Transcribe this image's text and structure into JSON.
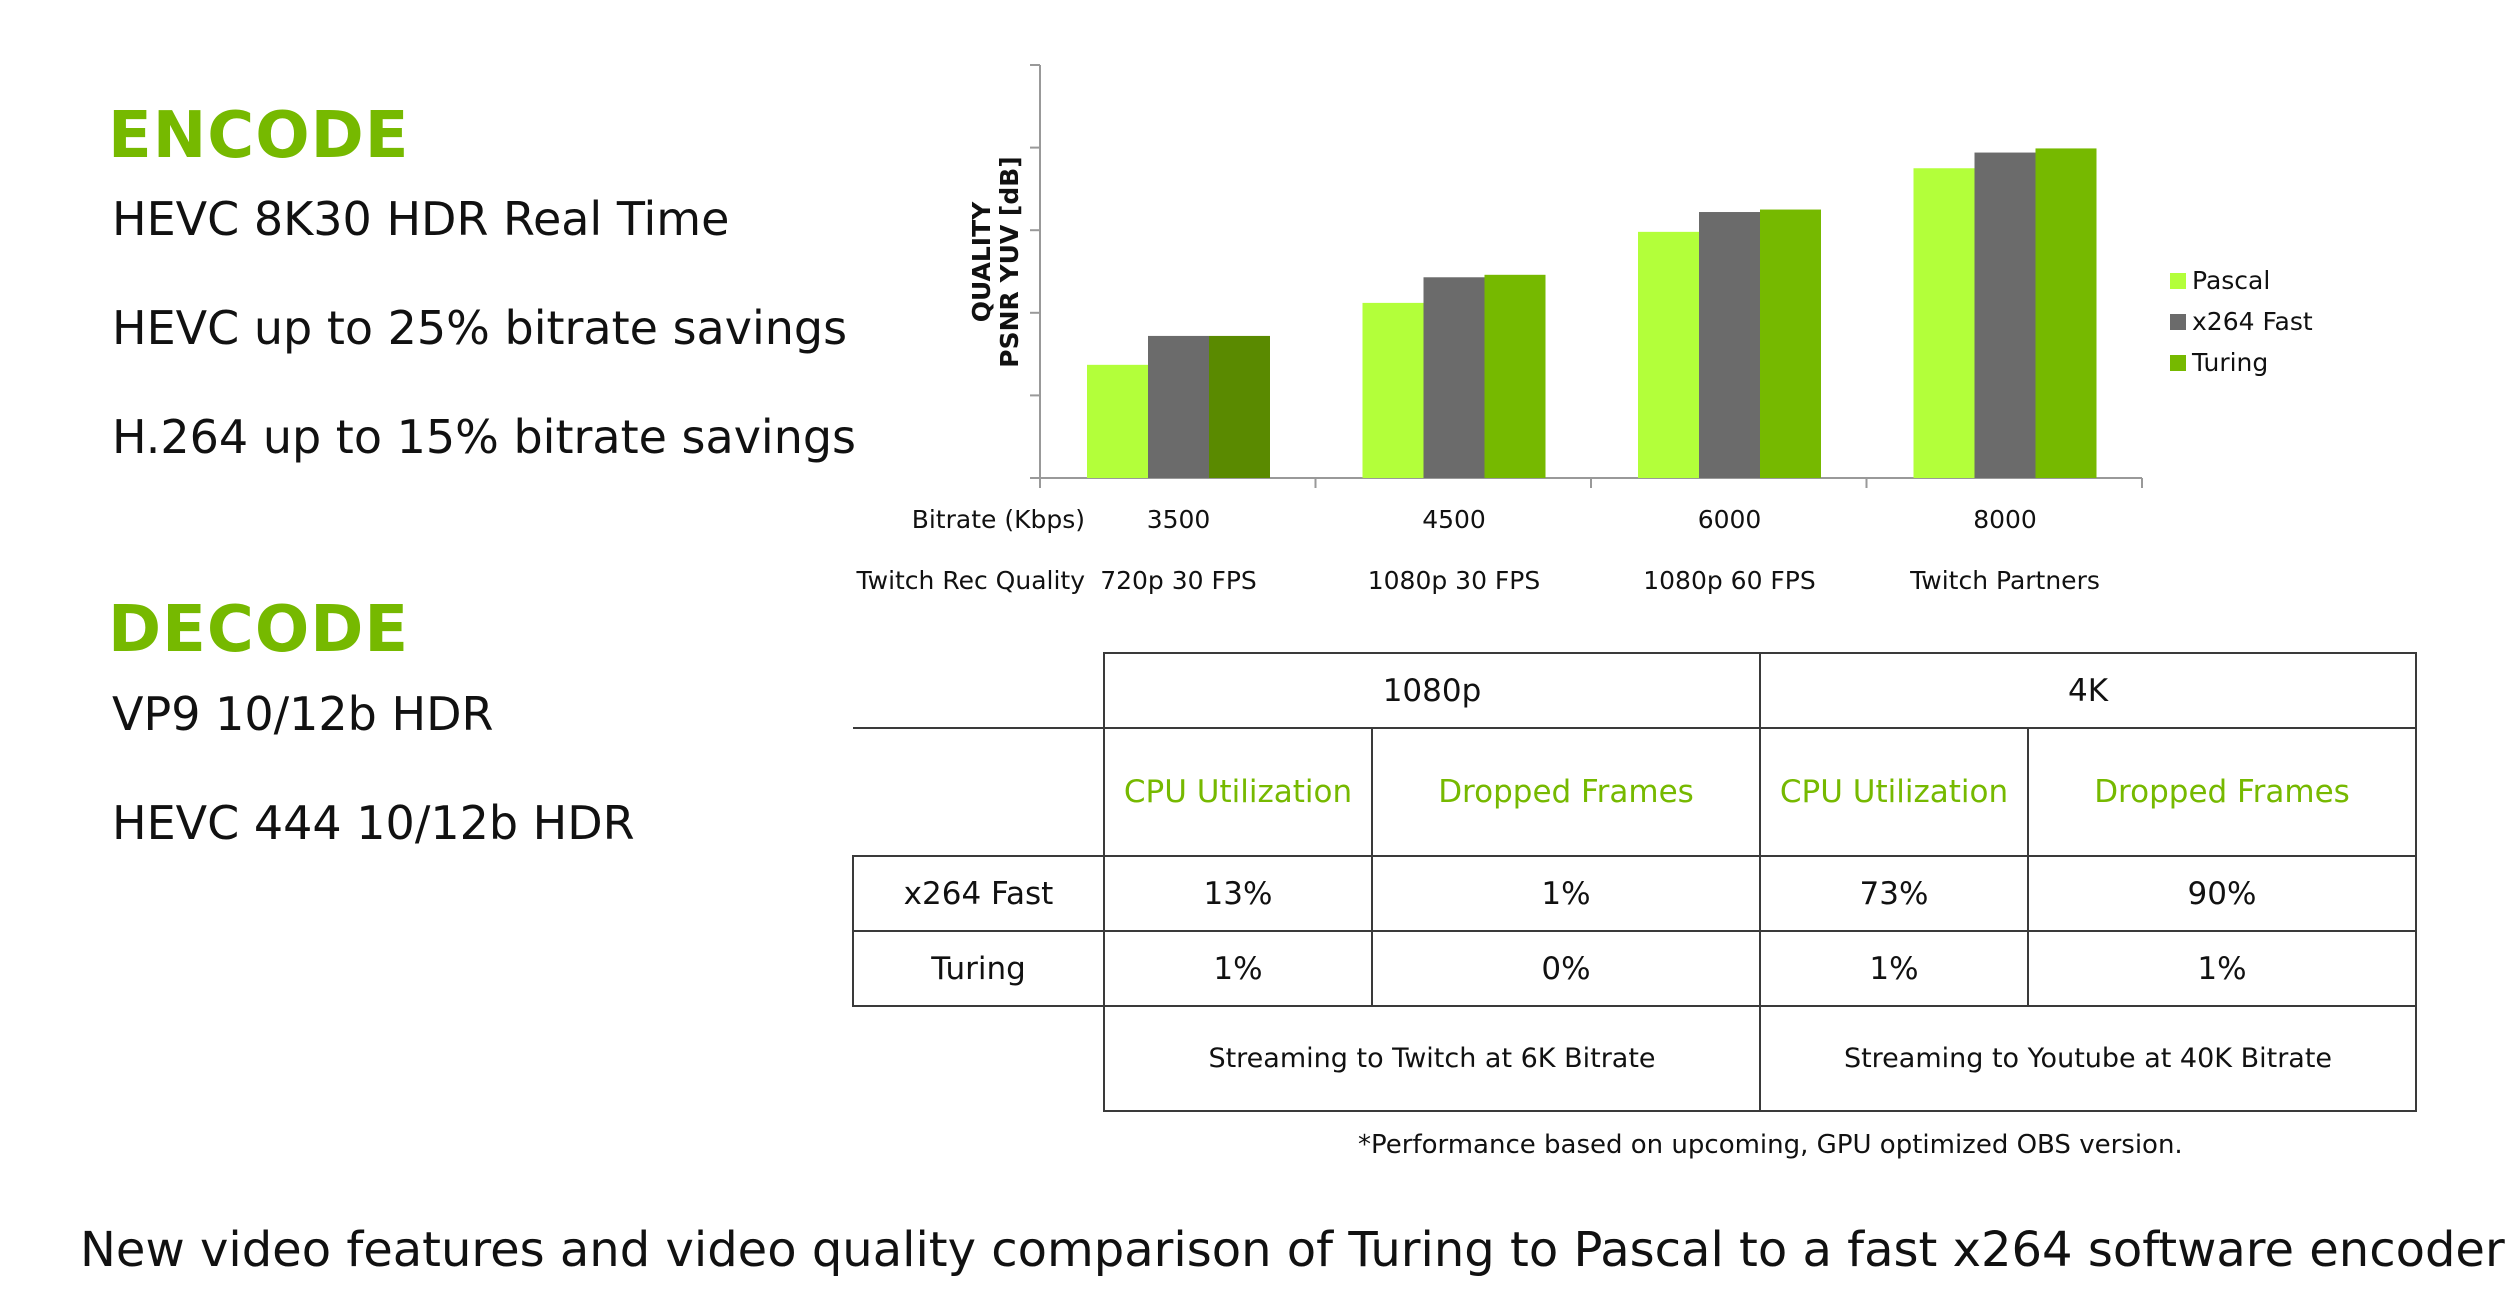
{
  "encode": {
    "heading": "ENCODE",
    "features": [
      "HEVC 8K30 HDR Real Time",
      "HEVC up to 25% bitrate savings",
      "H.264 up to 15% bitrate savings"
    ]
  },
  "decode": {
    "heading": "DECODE",
    "features": [
      "VP9 10/12b HDR",
      "HEVC 444 10/12b HDR"
    ]
  },
  "chart_data": {
    "type": "bar",
    "ylabel": [
      "QUALITY",
      "PSNR YUV [dB]"
    ],
    "ylim": [
      0,
      5
    ],
    "y_tick_labels": false,
    "grid": false,
    "legend_position": "right",
    "categories": [
      "3500",
      "4500",
      "6000",
      "8000"
    ],
    "x_row_labels": [
      "Bitrate (Kbps)",
      "Twitch Rec Quality"
    ],
    "quality_labels": [
      "720p 30 FPS",
      "1080p 30 FPS",
      "1080p 60 FPS",
      "Twitch Partners"
    ],
    "series": [
      {
        "name": "Pascal",
        "values": [
          1.37,
          2.12,
          2.98,
          3.75
        ]
      },
      {
        "name": "x264 Fast",
        "values": [
          1.72,
          2.43,
          3.22,
          3.94
        ]
      },
      {
        "name": "Turing",
        "values": [
          1.72,
          2.46,
          3.25,
          3.99
        ]
      }
    ],
    "colors": [
      "#b3ff3a",
      "#6b6b6b",
      "#76b900"
    ],
    "first_turing_color": "#5a8a00"
  },
  "table": {
    "group_headers": [
      "1080p",
      "4K"
    ],
    "sub_headers": [
      "CPU Utilization",
      "Dropped Frames",
      "CPU Utilization",
      "Dropped Frames"
    ],
    "rows": [
      {
        "label": "x264 Fast",
        "cells": [
          "13%",
          "1%",
          "73%",
          "90%"
        ]
      },
      {
        "label": "Turing",
        "cells": [
          "1%",
          "0%",
          "1%",
          "1%"
        ]
      }
    ],
    "notes": [
      "Streaming to Twitch at 6K Bitrate",
      "Streaming to Youtube at 40K Bitrate"
    ]
  },
  "footnote": "*Performance based on upcoming, GPU optimized OBS version.",
  "caption": "New video features and video quality comparison of Turing to Pascal to a fast x264 software encoder"
}
